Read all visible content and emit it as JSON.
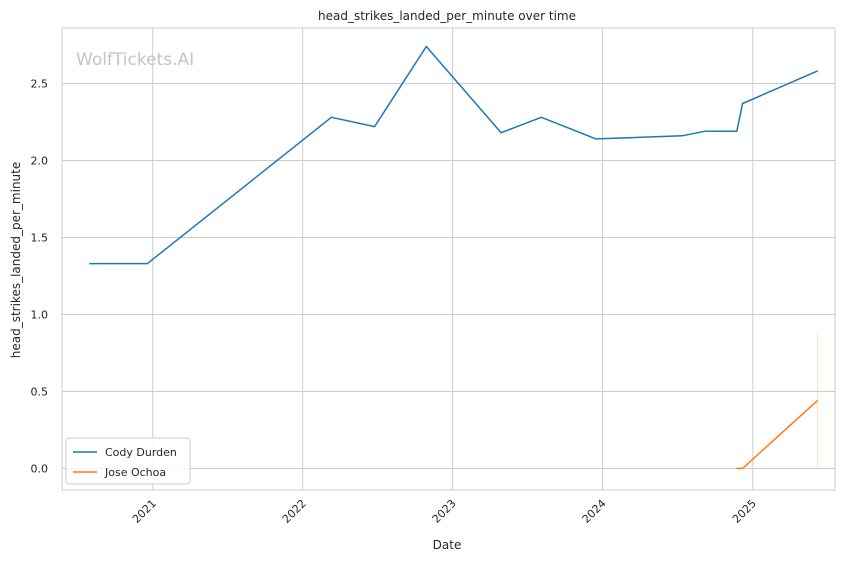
{
  "chart_data": {
    "type": "line",
    "title": "head_strikes_landed_per_minute over time",
    "xlabel": "Date",
    "ylabel": "head_strikes_landed_per_minute",
    "watermark": "WolfTickets.AI",
    "x_ticks": [
      "2021",
      "2022",
      "2023",
      "2024",
      "2025"
    ],
    "y_ticks": [
      "0.0",
      "0.5",
      "1.0",
      "1.5",
      "2.0",
      "2.5"
    ],
    "xlim": [
      "2020-05-25",
      "2025-07-20"
    ],
    "ylim": [
      -0.14,
      2.86
    ],
    "grid": true,
    "legend_position": "lower-left",
    "series": [
      {
        "name": "Cody Durden",
        "color": "#1f77b4",
        "points": [
          {
            "x": "2020-08-01",
            "y": 1.33
          },
          {
            "x": "2020-12-19",
            "y": 1.33
          },
          {
            "x": "2022-03-12",
            "y": 2.28
          },
          {
            "x": "2022-06-25",
            "y": 2.22
          },
          {
            "x": "2022-10-29",
            "y": 2.74
          },
          {
            "x": "2023-04-29",
            "y": 2.18
          },
          {
            "x": "2023-08-05",
            "y": 2.28
          },
          {
            "x": "2023-12-16",
            "y": 2.14
          },
          {
            "x": "2024-07-13",
            "y": 2.16
          },
          {
            "x": "2024-09-07",
            "y": 2.19
          },
          {
            "x": "2024-11-23",
            "y": 2.19
          },
          {
            "x": "2024-12-07",
            "y": 2.37
          },
          {
            "x": "2025-06-07",
            "y": 2.58
          }
        ]
      },
      {
        "name": "Jose Ochoa",
        "color": "#ff7f0e",
        "points": [
          {
            "x": "2024-11-23",
            "y": 0.0
          },
          {
            "x": "2024-12-07",
            "y": 0.0
          },
          {
            "x": "2025-06-07",
            "y": 0.44
          }
        ],
        "error_band": {
          "x": "2025-06-07",
          "low": 0.0,
          "high": 0.87
        }
      }
    ]
  }
}
